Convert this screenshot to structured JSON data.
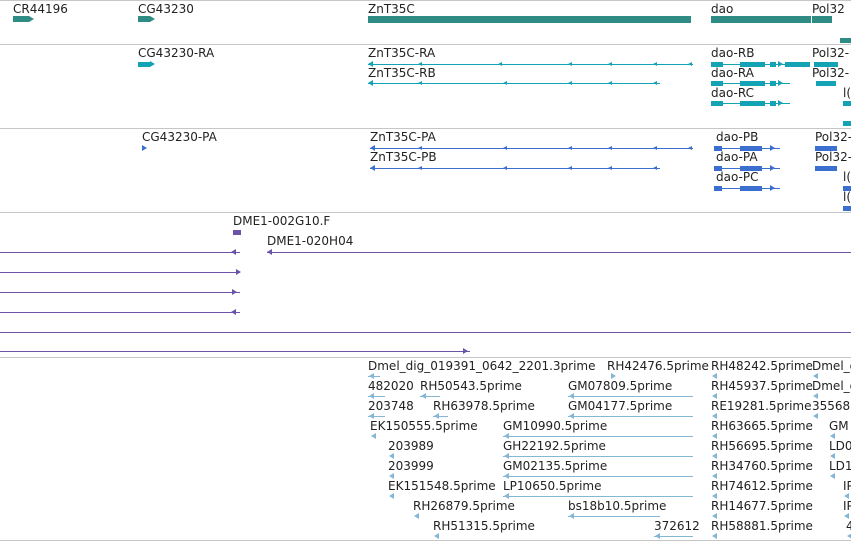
{
  "colors": {
    "gene": "#2f8c85",
    "transcript": "#14a3b5",
    "protein": "#3b6fcf",
    "clone": "#6a54a8",
    "est": "#85b6d6",
    "separator": "#c6c6c6"
  },
  "tracks": {
    "genes": {
      "labels": [
        "CR44196",
        "CG43230",
        "ZnT35C",
        "dao",
        "Pol32"
      ]
    },
    "transcripts": {
      "labels": [
        "CG43230-RA",
        "ZnT35C-RA",
        "ZnT35C-RB",
        "dao-RB",
        "dao-RA",
        "dao-RC",
        "Pol32-",
        "Pol32-",
        "l(2"
      ]
    },
    "proteins": {
      "labels": [
        "CG43230-PA",
        "ZnT35C-PA",
        "ZnT35C-PB",
        "dao-PB",
        "dao-PA",
        "dao-PC",
        "Pol32-",
        "Pol32-",
        "l(",
        "l("
      ]
    },
    "clones": {
      "labels": [
        "DME1-002G10.F",
        "DME1-020H04"
      ]
    },
    "ests": {
      "labels": [
        "Dmel_dig_019391_0642_2201.3prime",
        "RH42476.5prime",
        "RH48242.5prime",
        "Dmel_d",
        "482020",
        "RH50543.5prime",
        "GM07809.5prime",
        "RH45937.5prime",
        "Dmel_d",
        "203748",
        "RH63978.5prime",
        "GM04177.5prime",
        "RE19281.5prime",
        "35568",
        "EK150555.5prime",
        "GM10990.5prime",
        "RH63665.5prime",
        "GM",
        "203989",
        "GH22192.5prime",
        "RH56695.5prime",
        "LD0",
        "203999",
        "GM02135.5prime",
        "RH34760.5prime",
        "LD1",
        "EK151548.5prime",
        "LP10650.5prime",
        "RH74612.5prime",
        "IP",
        "RH26879.5prime",
        "bs18b10.5prime",
        "RH14677.5prime",
        "IP",
        "RH51315.5prime",
        "372612",
        "RH58881.5prime",
        "4"
      ]
    }
  }
}
